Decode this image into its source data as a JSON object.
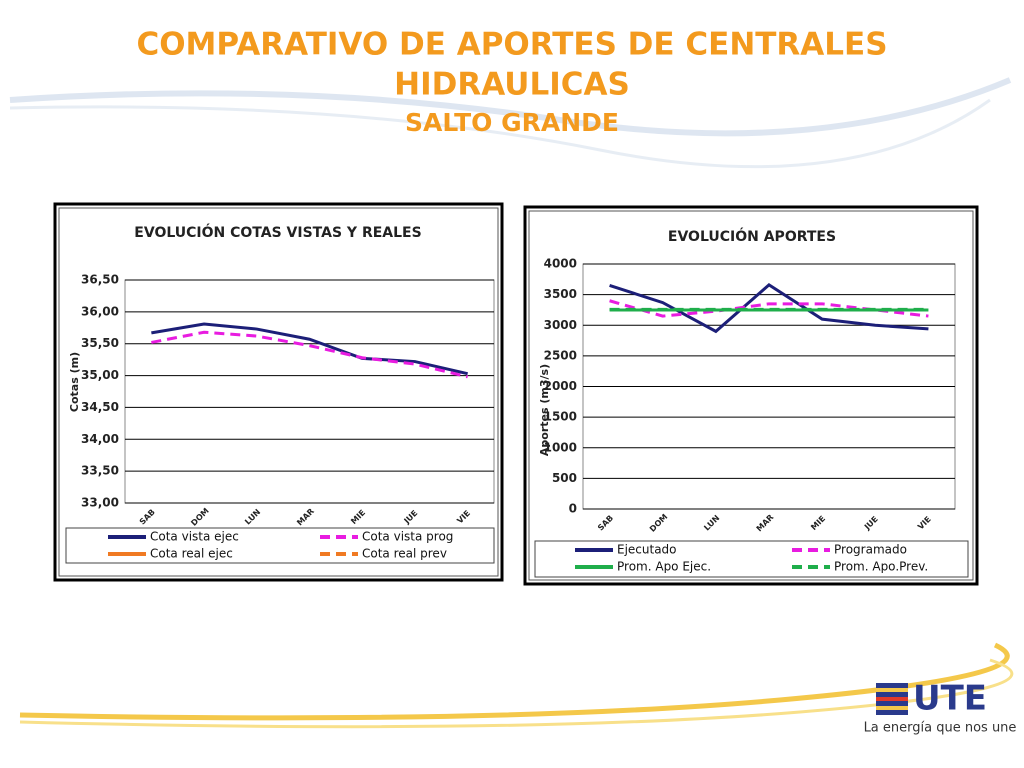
{
  "slide": {
    "title_line1": "COMPARATIVO DE APORTES DE CENTRALES",
    "title_line2": "HIDRAULICAS",
    "subtitle": "SALTO GRANDE",
    "logo": "UTE",
    "tagline": "La energía que nos une"
  },
  "chart_data": [
    {
      "type": "line",
      "title": "EVOLUCIÓN  COTAS VISTAS Y REALES",
      "y_label": "Cotas (m)",
      "categories": [
        "SAB",
        "DOM",
        "LUN",
        "MAR",
        "MIE",
        "JUE",
        "VIE"
      ],
      "ylim": [
        33,
        36.5
      ],
      "yticks": [
        {
          "value": 33,
          "label": "33,00"
        },
        {
          "value": 33.5,
          "label": "33,50"
        },
        {
          "value": 34,
          "label": "34,00"
        },
        {
          "value": 34.5,
          "label": "34,50"
        },
        {
          "value": 35,
          "label": "35,00"
        },
        {
          "value": 35.5,
          "label": "35,50"
        },
        {
          "value": 36,
          "label": "36,00"
        },
        {
          "value": 36.5,
          "label": "36,50"
        }
      ],
      "grid": true,
      "series": [
        {
          "name": "Cota vista ejec",
          "color": "#1c1f78",
          "dashed": false,
          "values": [
            35.67,
            35.81,
            35.73,
            35.57,
            35.27,
            35.22,
            35.03
          ]
        },
        {
          "name": "Cota vista prog",
          "color": "#e81ce0",
          "dashed": true,
          "values": [
            35.52,
            35.68,
            35.62,
            35.47,
            35.28,
            35.18,
            34.98
          ]
        },
        {
          "name": "Cota real ejec",
          "color": "#f07a22",
          "dashed": false,
          "values": [
            null,
            null,
            null,
            null,
            null,
            null,
            null
          ]
        },
        {
          "name": "Cota real prev",
          "color": "#f07a22",
          "dashed": true,
          "values": [
            null,
            null,
            null,
            null,
            null,
            null,
            null
          ]
        }
      ]
    },
    {
      "type": "line",
      "title": "EVOLUCIÓN  APORTES",
      "y_label": "Aportes (m3/s)",
      "categories": [
        "SAB",
        "DOM",
        "LUN",
        "MAR",
        "MIE",
        "JUE",
        "VIE"
      ],
      "ylim": [
        0,
        4000
      ],
      "yticks": [
        0,
        500,
        1000,
        1500,
        2000,
        2500,
        3000,
        3500,
        4000
      ],
      "grid": true,
      "series": [
        {
          "name": "Ejecutado",
          "color": "#1c1f78",
          "dashed": false,
          "values": [
            3650,
            3370,
            2900,
            3660,
            3100,
            3000,
            2940
          ]
        },
        {
          "name": "Programado",
          "color": "#e81ce0",
          "dashed": true,
          "values": [
            3400,
            3150,
            3230,
            3350,
            3350,
            3250,
            3150
          ]
        },
        {
          "name": "Prom. Apo Ejec.",
          "color": "#1fae4b",
          "dashed": false,
          "values": [
            3250,
            3250,
            3250,
            3250,
            3250,
            3250,
            3250
          ]
        },
        {
          "name": "Prom. Apo.Prev.",
          "color": "#1fae4b",
          "dashed": true,
          "values": [
            3260,
            3260,
            3260,
            3260,
            3260,
            3260,
            3260
          ]
        }
      ]
    }
  ]
}
